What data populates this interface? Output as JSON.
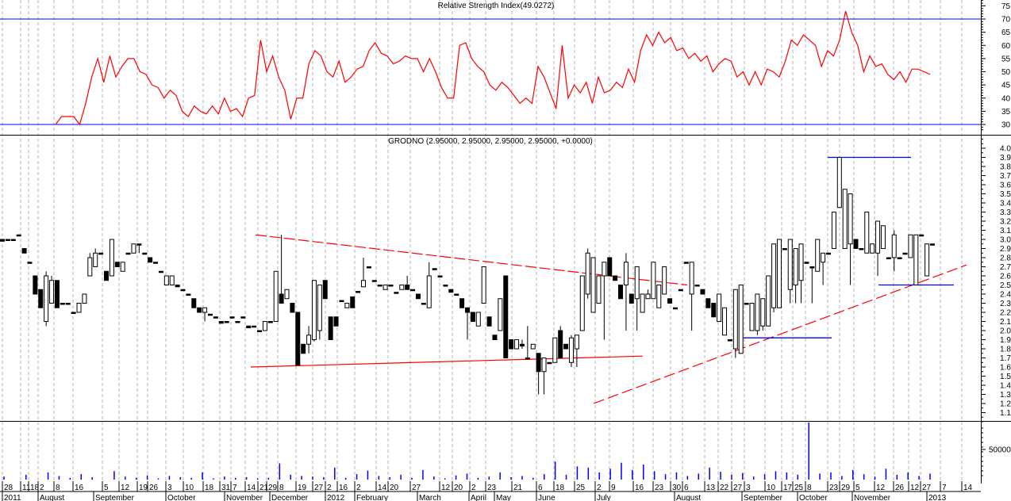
{
  "chart_data": [
    {
      "type": "line",
      "title": "Relative Strength Index(49.0272)",
      "ylim": [
        28,
        77
      ],
      "y_ticks": [
        "75",
        "70",
        "65",
        "60",
        "55",
        "50",
        "45",
        "40",
        "35",
        "30"
      ],
      "reference_lines": [
        70,
        30
      ],
      "colors": {
        "line": "#ff0000",
        "reference": "#0000ff"
      },
      "grid": "vertical dashed",
      "values": [
        30,
        33,
        33,
        33,
        30,
        38,
        48,
        55,
        46,
        56,
        48,
        52,
        55,
        55,
        50,
        49,
        45,
        44,
        40,
        43,
        41,
        35,
        33,
        37,
        35,
        34,
        37,
        34,
        40,
        35,
        36,
        33,
        40,
        41,
        62,
        50,
        56,
        48,
        43,
        32,
        40,
        40,
        53,
        58,
        56,
        50,
        48,
        54,
        46,
        48,
        51,
        52,
        58,
        61,
        57,
        56,
        53,
        54,
        56,
        55,
        55,
        50,
        55,
        50,
        44,
        40,
        40,
        60,
        61,
        55,
        52,
        50,
        45,
        43,
        46,
        44,
        41,
        38,
        40,
        38,
        52,
        48,
        42,
        36,
        60,
        40,
        45,
        42,
        46,
        38,
        48,
        42,
        43,
        46,
        44,
        51,
        46,
        58,
        64,
        60,
        65,
        61,
        63,
        58,
        59,
        55,
        57,
        54,
        56,
        50,
        53,
        55,
        54,
        48,
        50,
        45,
        50,
        45,
        51,
        50,
        48,
        54,
        62,
        60,
        64,
        62,
        60,
        52,
        58,
        56,
        62,
        73,
        65,
        60,
        50,
        56,
        52,
        53,
        49,
        47,
        50,
        46,
        51,
        51,
        50,
        49
      ]
    },
    {
      "type": "candlestick",
      "title": "GRODNO (2.95000, 2.95000, 2.95000, 2.95000, +0.0000)",
      "ylim": [
        1.0,
        4.1
      ],
      "y_ticks": [
        "4.0",
        "3.9",
        "3.8",
        "3.7",
        "3.6",
        "3.5",
        "3.4",
        "3.3",
        "3.2",
        "3.1",
        "3.0",
        "2.9",
        "2.8",
        "2.7",
        "2.6",
        "2.5",
        "2.4",
        "2.3",
        "2.2",
        "2.1",
        "2.0",
        "1.9",
        "1.8",
        "1.7",
        "1.6",
        "1.5",
        "1.4",
        "1.3",
        "1.2",
        "1.1"
      ],
      "ohlc_order": [
        "open",
        "high",
        "low",
        "close"
      ],
      "colors": {
        "up": "#ffffff",
        "down": "#000000",
        "outline": "#000000",
        "trend": "#ff0000",
        "level": "#0000ff"
      },
      "bars": [
        [
          3.0,
          3.0,
          2.98,
          2.98
        ],
        [
          3.0,
          3.0,
          3.0,
          3.0
        ],
        [
          3.0,
          3.0,
          3.0,
          3.0
        ],
        [
          3.05,
          3.05,
          3.05,
          3.05
        ],
        [
          2.9,
          2.9,
          2.85,
          2.85
        ],
        [
          2.75,
          2.75,
          2.75,
          2.75
        ],
        [
          2.6,
          2.6,
          2.4,
          2.4
        ],
        [
          2.45,
          2.45,
          2.25,
          2.25
        ],
        [
          2.1,
          2.65,
          2.05,
          2.6
        ],
        [
          2.3,
          2.6,
          2.3,
          2.55
        ],
        [
          2.55,
          2.55,
          2.25,
          2.25
        ],
        [
          2.3,
          2.3,
          2.3,
          2.3
        ],
        [
          2.3,
          2.3,
          2.3,
          2.3
        ],
        [
          2.2,
          2.2,
          2.2,
          2.2
        ],
        [
          2.2,
          2.3,
          2.2,
          2.3
        ],
        [
          2.3,
          2.4,
          2.3,
          2.4
        ],
        [
          2.6,
          2.85,
          2.6,
          2.8
        ],
        [
          2.7,
          2.9,
          2.7,
          2.85
        ],
        [
          2.85,
          2.85,
          2.85,
          2.85
        ],
        [
          2.65,
          2.65,
          2.55,
          2.55
        ],
        [
          2.6,
          3.0,
          2.6,
          3.0
        ],
        [
          2.75,
          2.75,
          2.7,
          2.7
        ],
        [
          2.65,
          2.75,
          2.65,
          2.75
        ],
        [
          2.85,
          2.85,
          2.85,
          2.85
        ],
        [
          2.85,
          2.95,
          2.85,
          2.95
        ],
        [
          2.95,
          2.95,
          2.85,
          2.95
        ],
        [
          2.85,
          2.85,
          2.85,
          2.85
        ],
        [
          2.8,
          2.8,
          2.75,
          2.75
        ],
        [
          2.75,
          2.75,
          2.75,
          2.75
        ],
        [
          2.65,
          2.65,
          2.65,
          2.65
        ],
        [
          2.5,
          2.6,
          2.5,
          2.6
        ],
        [
          2.5,
          2.6,
          2.5,
          2.6
        ],
        [
          2.5,
          2.5,
          2.48,
          2.48
        ],
        [
          2.45,
          2.45,
          2.45,
          2.45
        ],
        [
          2.4,
          2.4,
          2.4,
          2.4
        ],
        [
          2.35,
          2.35,
          2.25,
          2.25
        ],
        [
          2.25,
          2.25,
          2.2,
          2.2
        ],
        [
          2.2,
          2.25,
          2.1,
          2.25
        ],
        [
          2.18,
          2.18,
          2.18,
          2.18
        ],
        [
          2.15,
          2.15,
          2.15,
          2.15
        ],
        [
          2.1,
          2.1,
          2.08,
          2.08
        ],
        [
          2.1,
          2.1,
          2.1,
          2.1
        ],
        [
          2.15,
          2.15,
          2.15,
          2.15
        ],
        [
          2.1,
          2.1,
          2.1,
          2.1
        ],
        [
          2.15,
          2.15,
          2.15,
          2.15
        ],
        [
          2.05,
          2.05,
          2.03,
          2.03
        ],
        [
          2.05,
          2.05,
          2.05,
          2.05
        ],
        [
          2.0,
          2.0,
          2.0,
          2.0
        ],
        [
          2.0,
          2.1,
          2.0,
          2.1
        ],
        [
          2.1,
          2.1,
          2.1,
          2.1
        ],
        [
          2.1,
          2.65,
          2.1,
          2.65
        ],
        [
          2.4,
          3.05,
          2.3,
          2.3
        ],
        [
          2.35,
          2.45,
          2.35,
          2.45
        ],
        [
          2.3,
          2.3,
          2.2,
          2.2
        ],
        [
          2.2,
          2.2,
          1.62,
          1.62
        ],
        [
          1.85,
          1.85,
          1.75,
          1.75
        ],
        [
          1.85,
          2.05,
          1.75,
          1.95
        ],
        [
          1.9,
          2.55,
          1.88,
          2.55
        ],
        [
          2.0,
          2.5,
          1.9,
          2.5
        ],
        [
          2.55,
          2.55,
          2.35,
          2.35
        ],
        [
          2.15,
          2.15,
          1.9,
          1.9
        ],
        [
          2.15,
          2.15,
          2.05,
          2.05
        ],
        [
          2.33,
          2.33,
          2.33,
          2.33
        ],
        [
          2.25,
          2.3,
          2.25,
          2.3
        ],
        [
          2.37,
          2.37,
          2.25,
          2.25
        ],
        [
          2.43,
          2.43,
          2.43,
          2.43
        ],
        [
          2.48,
          2.8,
          2.48,
          2.55
        ],
        [
          2.7,
          2.7,
          2.7,
          2.7
        ],
        [
          2.55,
          2.55,
          2.55,
          2.55
        ],
        [
          2.5,
          2.5,
          2.5,
          2.5
        ],
        [
          2.45,
          2.5,
          2.45,
          2.5
        ],
        [
          2.5,
          2.5,
          2.5,
          2.5
        ],
        [
          2.42,
          2.42,
          2.42,
          2.42
        ],
        [
          2.45,
          2.5,
          2.45,
          2.5
        ],
        [
          2.5,
          2.6,
          2.45,
          2.45
        ],
        [
          2.45,
          2.45,
          2.45,
          2.45
        ],
        [
          2.4,
          2.4,
          2.35,
          2.35
        ],
        [
          2.3,
          2.3,
          2.3,
          2.3
        ],
        [
          2.25,
          2.75,
          2.25,
          2.6
        ],
        [
          2.68,
          2.68,
          2.68,
          2.68
        ],
        [
          2.6,
          2.6,
          2.6,
          2.6
        ],
        [
          2.5,
          2.5,
          2.5,
          2.5
        ],
        [
          2.45,
          2.45,
          2.42,
          2.42
        ],
        [
          2.4,
          2.4,
          2.4,
          2.4
        ],
        [
          2.35,
          2.35,
          2.25,
          2.25
        ],
        [
          2.25,
          2.25,
          1.9,
          2.2
        ],
        [
          2.2,
          2.2,
          2.1,
          2.1
        ],
        [
          2.05,
          2.2,
          2.05,
          2.2
        ],
        [
          2.3,
          2.7,
          2.3,
          2.7
        ],
        [
          2.15,
          2.15,
          2.05,
          2.05
        ],
        [
          1.95,
          1.95,
          1.9,
          1.9
        ],
        [
          2.0,
          2.35,
          2.0,
          2.35
        ],
        [
          2.6,
          2.6,
          1.7,
          1.7
        ],
        [
          1.9,
          1.9,
          1.8,
          1.8
        ],
        [
          1.8,
          1.9,
          1.8,
          1.9
        ],
        [
          1.85,
          1.9,
          1.8,
          1.83
        ],
        [
          1.7,
          2.05,
          1.7,
          1.7
        ],
        [
          1.8,
          1.85,
          1.8,
          1.85
        ],
        [
          1.75,
          1.75,
          1.3,
          1.55
        ],
        [
          1.55,
          1.7,
          1.3,
          1.7
        ],
        [
          1.65,
          1.65,
          1.65,
          1.65
        ],
        [
          1.65,
          1.92,
          1.65,
          1.92
        ],
        [
          2.0,
          2.05,
          1.7,
          1.7
        ],
        [
          1.85,
          1.85,
          1.8,
          1.8
        ],
        [
          1.65,
          1.95,
          1.6,
          1.92
        ],
        [
          1.8,
          1.95,
          1.6,
          1.95
        ],
        [
          2.0,
          2.6,
          2.0,
          2.6
        ],
        [
          2.4,
          2.9,
          2.35,
          2.85
        ],
        [
          2.2,
          2.8,
          2.2,
          2.8
        ],
        [
          2.3,
          2.6,
          2.3,
          2.6
        ],
        [
          2.6,
          2.75,
          1.9,
          2.75
        ],
        [
          2.8,
          2.8,
          2.6,
          2.6
        ],
        [
          2.6,
          2.6,
          2.55,
          2.55
        ],
        [
          2.5,
          2.5,
          2.35,
          2.35
        ],
        [
          2.5,
          2.85,
          2.0,
          2.75
        ],
        [
          2.4,
          2.4,
          2.3,
          2.3
        ],
        [
          2.35,
          2.7,
          2.0,
          2.7
        ],
        [
          2.2,
          2.4,
          2.2,
          2.4
        ],
        [
          2.35,
          2.45,
          2.35,
          2.4
        ],
        [
          2.35,
          2.75,
          2.35,
          2.75
        ],
        [
          2.25,
          2.5,
          2.25,
          2.5
        ],
        [
          2.4,
          2.7,
          2.4,
          2.7
        ],
        [
          2.35,
          2.35,
          2.3,
          2.3
        ],
        [
          2.25,
          2.25,
          2.25,
          2.25
        ],
        [
          2.45,
          2.45,
          2.45,
          2.45
        ],
        [
          2.75,
          2.75,
          2.75,
          2.75
        ],
        [
          2.4,
          2.75,
          2.0,
          2.75
        ],
        [
          2.5,
          2.5,
          2.5,
          2.5
        ],
        [
          2.45,
          2.45,
          2.4,
          2.4
        ],
        [
          2.35,
          2.35,
          2.25,
          2.25
        ],
        [
          2.3,
          2.3,
          2.15,
          2.15
        ],
        [
          2.1,
          2.4,
          2.1,
          2.4
        ],
        [
          1.95,
          2.25,
          1.95,
          2.25
        ],
        [
          1.9,
          1.9,
          1.9,
          1.9
        ],
        [
          1.8,
          2.45,
          1.7,
          2.45
        ],
        [
          1.75,
          2.5,
          1.75,
          2.5
        ],
        [
          2.3,
          2.3,
          2.3,
          2.3
        ],
        [
          2.0,
          2.3,
          2.0,
          2.3
        ],
        [
          2.0,
          2.4,
          1.95,
          2.4
        ],
        [
          2.05,
          2.35,
          2.0,
          2.35
        ],
        [
          2.05,
          2.6,
          2.05,
          2.6
        ],
        [
          2.25,
          2.95,
          2.2,
          2.95
        ],
        [
          2.25,
          3.0,
          2.25,
          3.0
        ],
        [
          2.9,
          2.9,
          2.9,
          2.9
        ],
        [
          2.45,
          3.0,
          2.3,
          3.0
        ],
        [
          2.5,
          2.9,
          2.3,
          2.9
        ],
        [
          2.55,
          2.95,
          2.3,
          2.95
        ],
        [
          2.75,
          2.75,
          2.75,
          2.75
        ],
        [
          2.7,
          2.7,
          2.3,
          2.7
        ],
        [
          2.65,
          3.0,
          2.65,
          3.0
        ],
        [
          2.75,
          2.85,
          2.5,
          2.85
        ],
        [
          2.85,
          2.85,
          2.85,
          2.85
        ],
        [
          2.9,
          3.3,
          2.9,
          3.3
        ],
        [
          3.35,
          3.9,
          3.35,
          3.9
        ],
        [
          2.9,
          3.55,
          2.9,
          3.55
        ],
        [
          2.95,
          3.5,
          2.5,
          3.5
        ],
        [
          3.0,
          3.0,
          2.9,
          2.9
        ],
        [
          2.9,
          2.9,
          2.9,
          2.9
        ],
        [
          2.85,
          3.3,
          2.85,
          3.3
        ],
        [
          2.85,
          2.95,
          2.85,
          2.95
        ],
        [
          2.85,
          3.2,
          2.6,
          3.2
        ],
        [
          2.9,
          3.15,
          2.9,
          3.15
        ],
        [
          2.8,
          2.8,
          2.8,
          2.8
        ],
        [
          2.8,
          3.1,
          2.65,
          3.05
        ],
        [
          2.8,
          2.8,
          2.8,
          2.8
        ],
        [
          2.85,
          2.85,
          2.85,
          2.85
        ],
        [
          2.8,
          3.05,
          2.8,
          3.05
        ],
        [
          2.5,
          3.05,
          2.5,
          3.05
        ],
        [
          3.05,
          3.05,
          3.05,
          3.05
        ],
        [
          2.6,
          2.95,
          2.6,
          2.95
        ],
        [
          2.95,
          2.95,
          2.95,
          2.95
        ]
      ],
      "annotations": {
        "trend_lower": {
          "start": 1.6,
          "end": 1.72
        },
        "trend_upper": {
          "start": 3.05,
          "end": 2.5
        },
        "trend_rising": {
          "start": 1.2,
          "end": 2.72
        },
        "level_low": 1.92,
        "level_high": 3.9,
        "level_support": 2.5
      }
    },
    {
      "type": "bar",
      "y_ticks": [
        "50000"
      ],
      "colors": {
        "bar": "#0000ff"
      },
      "values": [
        5000,
        0,
        8000,
        0,
        12000,
        6000,
        3000,
        9000,
        4000,
        0,
        14000,
        5000,
        3000,
        7000,
        2000,
        6000,
        4000,
        3000,
        12000,
        2000,
        5000,
        3000,
        4000,
        2000,
        3000,
        27000,
        8000,
        6000,
        5000,
        4000,
        20000,
        3000,
        9000,
        15000,
        6000,
        4000,
        8000,
        3000,
        16000,
        5000,
        2000,
        7000,
        10000,
        3000,
        5000,
        12000,
        4000,
        6000,
        3000,
        9000,
        30000,
        8000,
        22000,
        20000,
        12000,
        18000,
        28000,
        16000,
        25000,
        14000,
        9000,
        12000,
        6000,
        10000,
        20000,
        13000,
        8000,
        11000,
        5000,
        9000,
        14000,
        12000,
        8000,
        95000,
        10000,
        12000,
        6000,
        16000,
        9000,
        5000,
        18000,
        8000,
        12000,
        6000,
        10000
      ]
    }
  ],
  "x_axis": {
    "days": [
      "28",
      "11",
      "18",
      "2",
      "8",
      "16",
      "5",
      "12",
      "19",
      "26",
      "3",
      "10",
      "18",
      "31",
      "7",
      "14",
      "21",
      "29",
      "8",
      "19",
      "27",
      "2",
      "16",
      "2",
      "14",
      "20",
      "27",
      "12",
      "20",
      "2",
      "23",
      "21",
      "6",
      "18",
      "25",
      "2",
      "9",
      "16",
      "23",
      "30",
      "6",
      "13",
      "22",
      "27",
      "3",
      "10",
      "17",
      "25",
      "8",
      "23",
      "29",
      "5",
      "12",
      "26",
      "12",
      "27",
      "7",
      "14"
    ],
    "months": [
      "2011",
      "August",
      "September",
      "October",
      "November",
      "December",
      "2012",
      "February",
      "March",
      "April",
      "May",
      "June",
      "July",
      "August",
      "September",
      "October",
      "November",
      "2013"
    ]
  }
}
